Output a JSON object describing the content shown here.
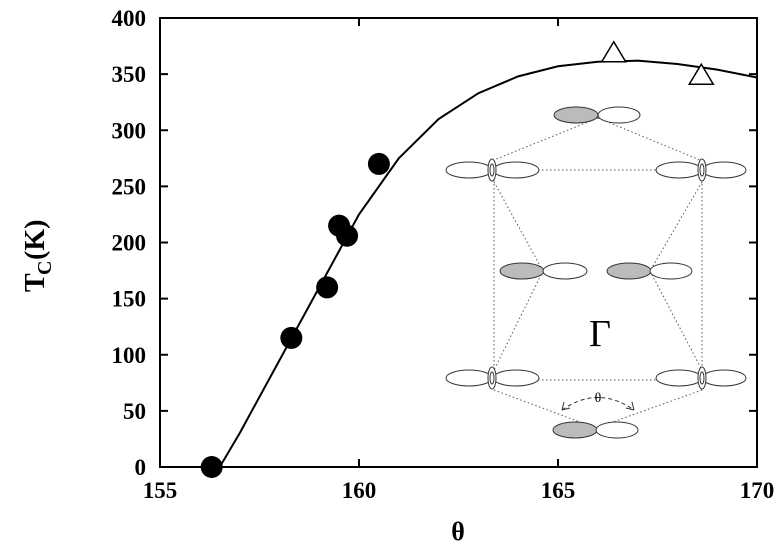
{
  "chart_data": {
    "type": "scatter",
    "xlabel": "θ",
    "ylabel": {
      "main": "T",
      "sub": "C",
      "unit": "(K)"
    },
    "xlim": [
      155,
      170
    ],
    "ylim": [
      0,
      400
    ],
    "xticks": [
      155,
      160,
      165,
      170
    ],
    "yticks": [
      0,
      50,
      100,
      150,
      200,
      250,
      300,
      350,
      400
    ],
    "series": [
      {
        "kind": "line",
        "color": "#000000",
        "x": [
          156.5,
          157,
          158,
          159,
          160,
          161,
          162,
          163,
          164,
          165,
          166,
          167,
          168,
          169,
          170
        ],
        "values": [
          0,
          30,
          95,
          160,
          225,
          275,
          310,
          333,
          348,
          357,
          361,
          362,
          359,
          354,
          347
        ]
      },
      {
        "kind": "circle",
        "color": "#000000",
        "x": [
          156.3,
          158.3,
          159.2,
          159.5,
          159.7,
          160.5
        ],
        "values": [
          0,
          115,
          160,
          215,
          206,
          270
        ]
      },
      {
        "kind": "triangle",
        "color": "#000000",
        "x": [
          166.4,
          168.6
        ],
        "values": [
          369,
          349
        ]
      }
    ],
    "annotations": {
      "gamma": "Γ",
      "angle": "θ"
    }
  }
}
